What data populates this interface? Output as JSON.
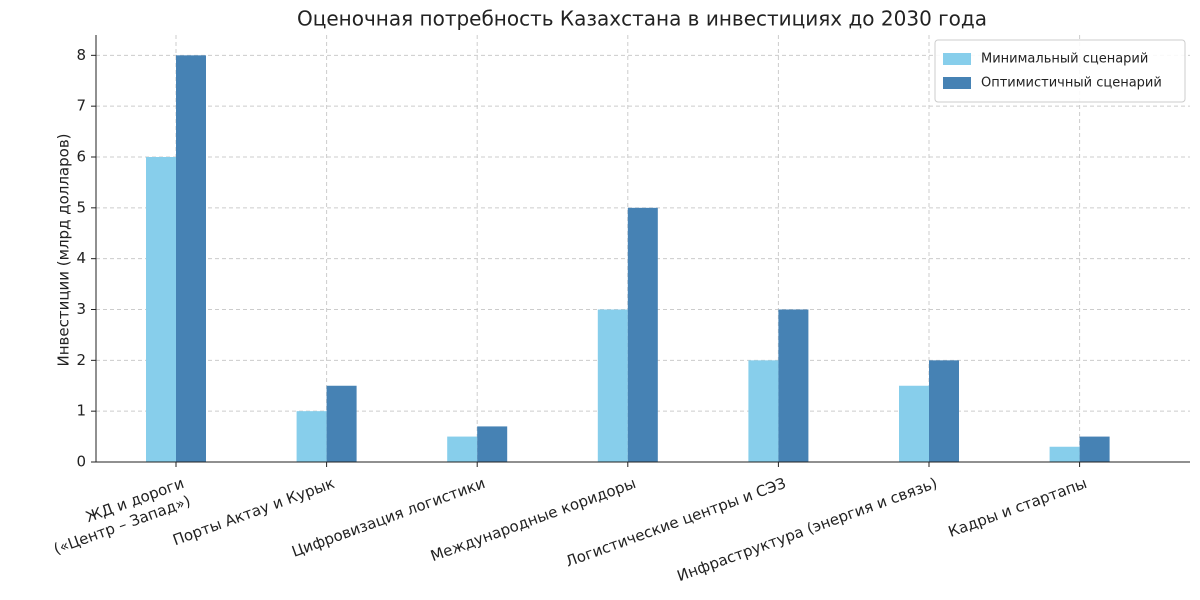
{
  "chart_data": {
    "type": "bar",
    "title": "Оценочная потребность Казахстана в инвестициях до 2030 года",
    "y_label": "Инвестиции (млрд долларов)",
    "categories": [
      "ЖД и дороги\n(«Центр – Запад»)",
      "Порты Актау и Курык",
      "Цифровизация логистики",
      "Международные коридоры",
      "Логистические центры и СЭЗ",
      "Инфраструктура (энергия и связь)",
      "Кадры и стартапы"
    ],
    "series": [
      {
        "name": "Минимальный сценарий",
        "color": "#87ceeb",
        "values": [
          6,
          1,
          0.5,
          3,
          2,
          1.5,
          0.3
        ]
      },
      {
        "name": "Оптимистичный сценарий",
        "color": "#4682b4",
        "values": [
          8,
          1.5,
          0.7,
          5,
          3,
          2,
          0.5
        ]
      }
    ],
    "ylim": [
      0,
      8.4
    ],
    "yticks": [
      0,
      1,
      2,
      3,
      4,
      5,
      6,
      7,
      8
    ],
    "grid": true,
    "legend": "upper right"
  }
}
